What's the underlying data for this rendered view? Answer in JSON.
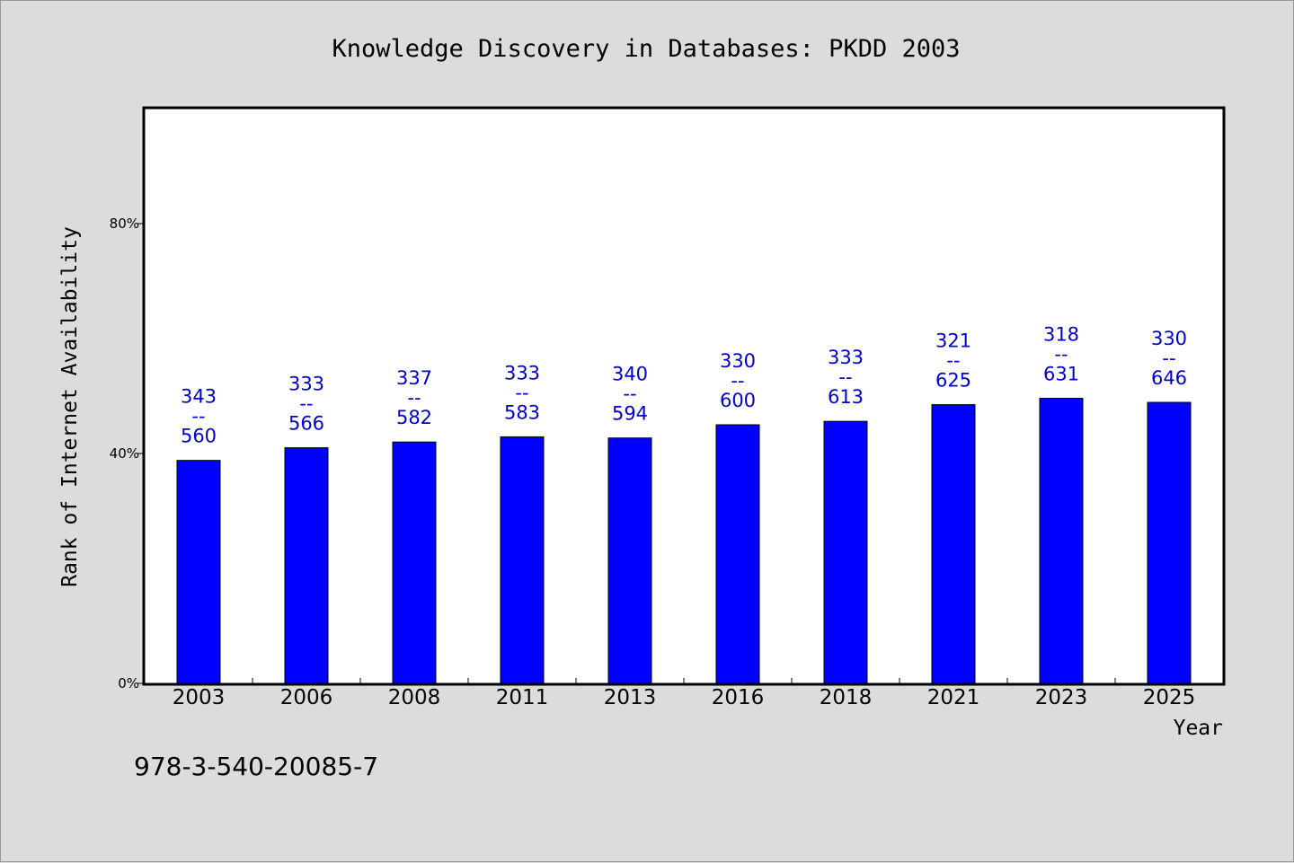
{
  "chart_data": {
    "type": "bar",
    "title": "Knowledge Discovery in Databases: PKDD 2003",
    "xlabel": "Year",
    "ylabel": "Rank of Internet Availability",
    "ylim": [
      0,
      100
    ],
    "yticks": [
      0,
      40,
      80
    ],
    "ytick_labels": [
      "0%",
      "40%",
      "80%"
    ],
    "grid": false,
    "categories": [
      "2003",
      "2006",
      "2008",
      "2011",
      "2013",
      "2016",
      "2018",
      "2021",
      "2023",
      "2025"
    ],
    "values": [
      38.8,
      41.0,
      42.0,
      42.9,
      42.7,
      45.0,
      45.6,
      48.5,
      49.6,
      48.9
    ],
    "data_labels": [
      [
        "343",
        "--",
        "560"
      ],
      [
        "333",
        "--",
        "566"
      ],
      [
        "337",
        "--",
        "582"
      ],
      [
        "333",
        "--",
        "583"
      ],
      [
        "340",
        "--",
        "594"
      ],
      [
        "330",
        "--",
        "600"
      ],
      [
        "333",
        "--",
        "613"
      ],
      [
        "321",
        "--",
        "625"
      ],
      [
        "318",
        "--",
        "631"
      ],
      [
        "330",
        "--",
        "646"
      ]
    ],
    "bar_color": "#0000ff",
    "label_color": "#0000cc",
    "plot_background": "#ffffff",
    "page_background": "#dcdcdc"
  },
  "footnote": "978-3-540-20085-7"
}
